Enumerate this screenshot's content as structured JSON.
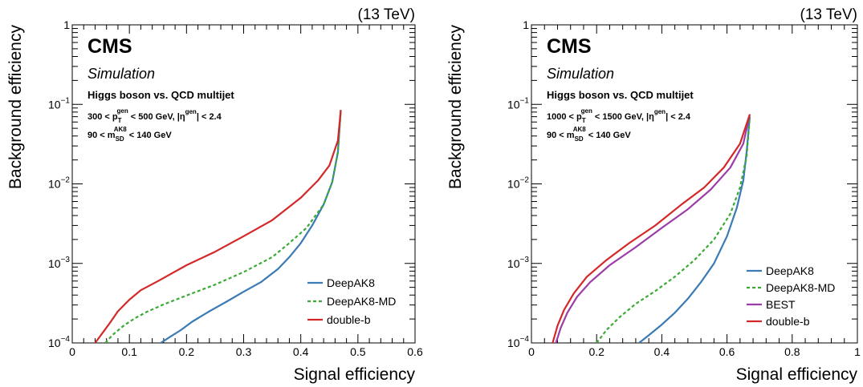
{
  "chart_data": [
    {
      "type": "line",
      "energy_label": "(13 TeV)",
      "experiment": "CMS",
      "subtitle": "Simulation",
      "process": "Higgs boson vs. QCD multijet",
      "cut1": {
        "base": "300 < p",
        "sub": "T",
        "sup": "gen",
        "rest": " < 500 GeV, |η",
        "sup2": "gen",
        "end": "| < 2.4"
      },
      "cut2": {
        "base": "90 < m",
        "sub": "SD",
        "sup": "AK8",
        "rest": " < 140 GeV"
      },
      "xlabel": "Signal efficiency",
      "ylabel": "Background efficiency",
      "xlim": [
        0,
        0.6
      ],
      "ylim_log10": [
        -4,
        0
      ],
      "xscale": "linear",
      "yscale": "log",
      "x_ticks": [
        0,
        0.1,
        0.2,
        0.3,
        0.4,
        0.5,
        0.6
      ],
      "x_tick_labels": [
        "0",
        "0.1",
        "0.2",
        "0.3",
        "0.4",
        "0.5",
        "0.6"
      ],
      "y_ticks": [
        {
          "base": "10",
          "exp": "−4"
        },
        {
          "base": "10",
          "exp": "−3"
        },
        {
          "base": "10",
          "exp": "−2"
        },
        {
          "base": "10",
          "exp": "−1"
        },
        {
          "base": "1",
          "exp": ""
        }
      ],
      "legend_position": "bottom-right",
      "series": [
        {
          "name": "DeepAK8",
          "color": "#3a7ab5",
          "style": "solid",
          "x": [
            0.155,
            0.17,
            0.19,
            0.21,
            0.24,
            0.27,
            0.3,
            0.33,
            0.36,
            0.38,
            0.4,
            0.42,
            0.44,
            0.455,
            0.465,
            0.47
          ],
          "y": [
            0.0001,
            0.000118,
            0.000145,
            0.000185,
            0.00025,
            0.00033,
            0.00044,
            0.00058,
            0.00085,
            0.0012,
            0.0018,
            0.003,
            0.0055,
            0.0105,
            0.025,
            0.085
          ]
        },
        {
          "name": "DeepAK8-MD",
          "color": "#3aaa35",
          "style": "dashed",
          "x": [
            0.058,
            0.07,
            0.09,
            0.11,
            0.13,
            0.16,
            0.2,
            0.25,
            0.3,
            0.35,
            0.38,
            0.41,
            0.44,
            0.455,
            0.465,
            0.47
          ],
          "y": [
            0.0001,
            0.000125,
            0.000165,
            0.000205,
            0.000245,
            0.000305,
            0.000395,
            0.00054,
            0.00078,
            0.0012,
            0.0018,
            0.0028,
            0.0055,
            0.0105,
            0.025,
            0.085
          ]
        },
        {
          "name": "double-b",
          "color": "#d42728",
          "style": "solid",
          "x": [
            0.04,
            0.05,
            0.065,
            0.08,
            0.1,
            0.12,
            0.15,
            0.2,
            0.25,
            0.3,
            0.35,
            0.4,
            0.43,
            0.45,
            0.465,
            0.47
          ],
          "y": [
            0.0001,
            0.000125,
            0.000175,
            0.00025,
            0.00035,
            0.00046,
            0.0006,
            0.00095,
            0.0014,
            0.0022,
            0.0035,
            0.0067,
            0.011,
            0.017,
            0.035,
            0.085
          ]
        }
      ]
    },
    {
      "type": "line",
      "energy_label": "(13 TeV)",
      "experiment": "CMS",
      "subtitle": "Simulation",
      "process": "Higgs boson vs. QCD multijet",
      "cut1": {
        "base": "1000 < p",
        "sub": "T",
        "sup": "gen",
        "rest": " < 1500 GeV, |η",
        "sup2": "gen",
        "end": "| < 2.4"
      },
      "cut2": {
        "base": "90 < m",
        "sub": "SD",
        "sup": "AK8",
        "rest": " < 140 GeV"
      },
      "xlabel": "Signal efficiency",
      "ylabel": "Background efficiency",
      "xlim": [
        0,
        1
      ],
      "ylim_log10": [
        -4,
        0
      ],
      "xscale": "linear",
      "yscale": "log",
      "x_ticks": [
        0,
        0.2,
        0.4,
        0.6,
        0.8,
        1
      ],
      "x_tick_labels": [
        "0",
        "0.2",
        "0.4",
        "0.6",
        "0.8",
        "1"
      ],
      "y_ticks": [
        {
          "base": "10",
          "exp": "−4"
        },
        {
          "base": "10",
          "exp": "−3"
        },
        {
          "base": "10",
          "exp": "−2"
        },
        {
          "base": "10",
          "exp": "−1"
        },
        {
          "base": "1",
          "exp": ""
        }
      ],
      "legend_position": "bottom-right",
      "series": [
        {
          "name": "DeepAK8",
          "color": "#3a7ab5",
          "style": "solid",
          "x": [
            0.33,
            0.36,
            0.4,
            0.44,
            0.48,
            0.52,
            0.56,
            0.6,
            0.63,
            0.65,
            0.66,
            0.67
          ],
          "y": [
            0.0001,
            0.000125,
            0.00017,
            0.00024,
            0.00036,
            0.00058,
            0.001,
            0.0022,
            0.005,
            0.011,
            0.025,
            0.07
          ]
        },
        {
          "name": "DeepAK8-MD",
          "color": "#3aaa35",
          "style": "dashed",
          "x": [
            0.2,
            0.23,
            0.27,
            0.32,
            0.38,
            0.44,
            0.5,
            0.56,
            0.61,
            0.64,
            0.66,
            0.67
          ],
          "y": [
            0.0001,
            0.000145,
            0.00021,
            0.00031,
            0.00045,
            0.00068,
            0.0011,
            0.002,
            0.0042,
            0.009,
            0.022,
            0.07
          ]
        },
        {
          "name": "BEST",
          "color": "#9b3da8",
          "style": "solid",
          "x": [
            0.075,
            0.09,
            0.11,
            0.14,
            0.18,
            0.24,
            0.32,
            0.4,
            0.48,
            0.55,
            0.61,
            0.65,
            0.67
          ],
          "y": [
            0.0001,
            0.000155,
            0.00024,
            0.00038,
            0.00058,
            0.00095,
            0.0016,
            0.0028,
            0.0048,
            0.0085,
            0.016,
            0.032,
            0.075
          ]
        },
        {
          "name": "double-b",
          "color": "#d42728",
          "style": "solid",
          "x": [
            0.065,
            0.08,
            0.1,
            0.13,
            0.17,
            0.23,
            0.3,
            0.38,
            0.46,
            0.53,
            0.59,
            0.64,
            0.67
          ],
          "y": [
            0.0001,
            0.000165,
            0.00026,
            0.00042,
            0.00068,
            0.0011,
            0.0018,
            0.003,
            0.0055,
            0.009,
            0.016,
            0.032,
            0.075
          ]
        }
      ]
    }
  ]
}
